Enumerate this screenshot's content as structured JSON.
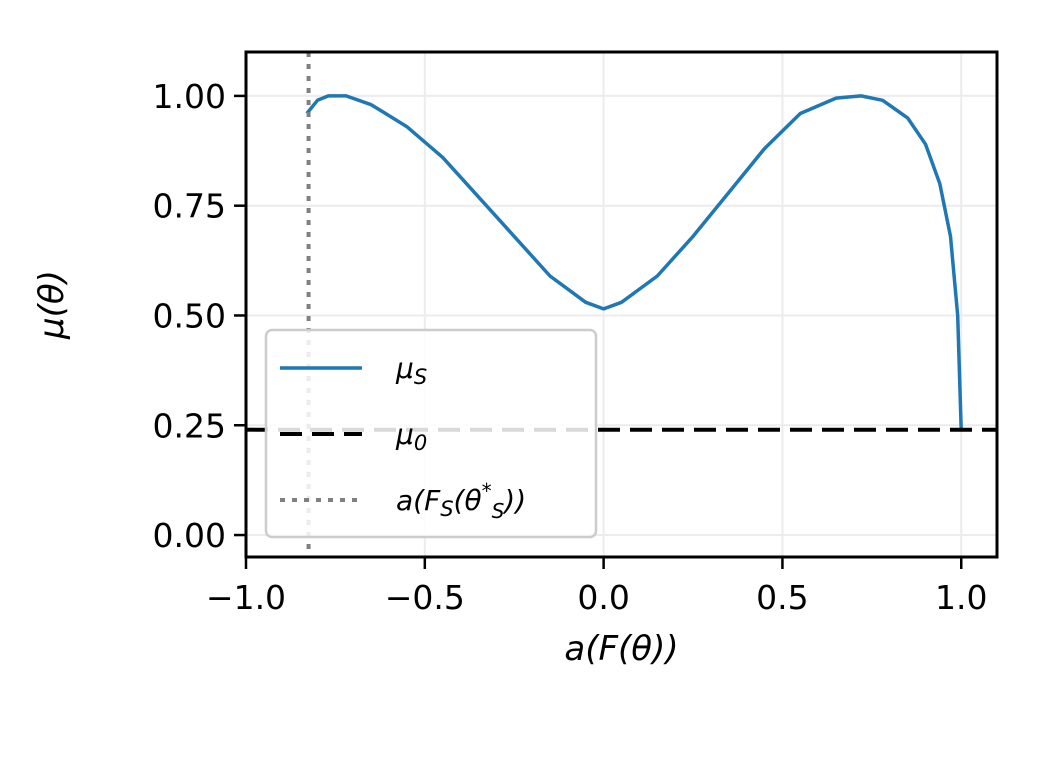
{
  "chart_data": {
    "type": "line",
    "xlabel": "a(F(θ))",
    "ylabel": "μ(θ)",
    "xlim": [
      -1.0,
      1.1
    ],
    "ylim": [
      -0.05,
      1.1
    ],
    "xticks": [
      -1.0,
      -0.5,
      0.0,
      0.5,
      1.0
    ],
    "xtick_labels": [
      "−1.0",
      "−0.5",
      "0.0",
      "0.5",
      "1.0"
    ],
    "yticks": [
      0.0,
      0.25,
      0.5,
      0.75,
      1.0
    ],
    "ytick_labels": [
      "0.00",
      "0.25",
      "0.50",
      "0.75",
      "1.00"
    ],
    "grid": true,
    "legend_position": "lower-left",
    "series": [
      {
        "name": "μS",
        "style": "solid",
        "color": "#1f77b4",
        "x": [
          -0.83,
          -0.8,
          -0.77,
          -0.72,
          -0.65,
          -0.55,
          -0.45,
          -0.35,
          -0.25,
          -0.15,
          -0.05,
          0.0,
          0.05,
          0.15,
          0.25,
          0.35,
          0.45,
          0.55,
          0.65,
          0.72,
          0.78,
          0.85,
          0.9,
          0.94,
          0.97,
          0.99,
          1.0
        ],
        "y": [
          0.96,
          0.99,
          1.0,
          1.0,
          0.98,
          0.93,
          0.86,
          0.77,
          0.68,
          0.59,
          0.53,
          0.515,
          0.53,
          0.59,
          0.68,
          0.78,
          0.88,
          0.96,
          0.995,
          1.0,
          0.99,
          0.95,
          0.89,
          0.8,
          0.68,
          0.5,
          0.24
        ]
      },
      {
        "name": "μ0",
        "style": "dashed",
        "color": "#000000",
        "x": [
          -1.0,
          1.1
        ],
        "y": [
          0.24,
          0.24
        ]
      },
      {
        "name": "a(FS(θS*))",
        "style": "dotted",
        "color": "#808080",
        "vline_x": -0.825
      }
    ],
    "legend": [
      {
        "label_main": "μ",
        "label_sub": "S",
        "style": "solid",
        "color": "#1f77b4"
      },
      {
        "label_main": "μ",
        "label_sub": "0",
        "style": "dashed",
        "color": "#000000"
      },
      {
        "label_main": "a(F",
        "label_sub": "S",
        "label_mid": "(θ",
        "label_sup": "*",
        "label_sub2": "S",
        "label_end": "))",
        "style": "dotted",
        "color": "#808080"
      }
    ]
  }
}
